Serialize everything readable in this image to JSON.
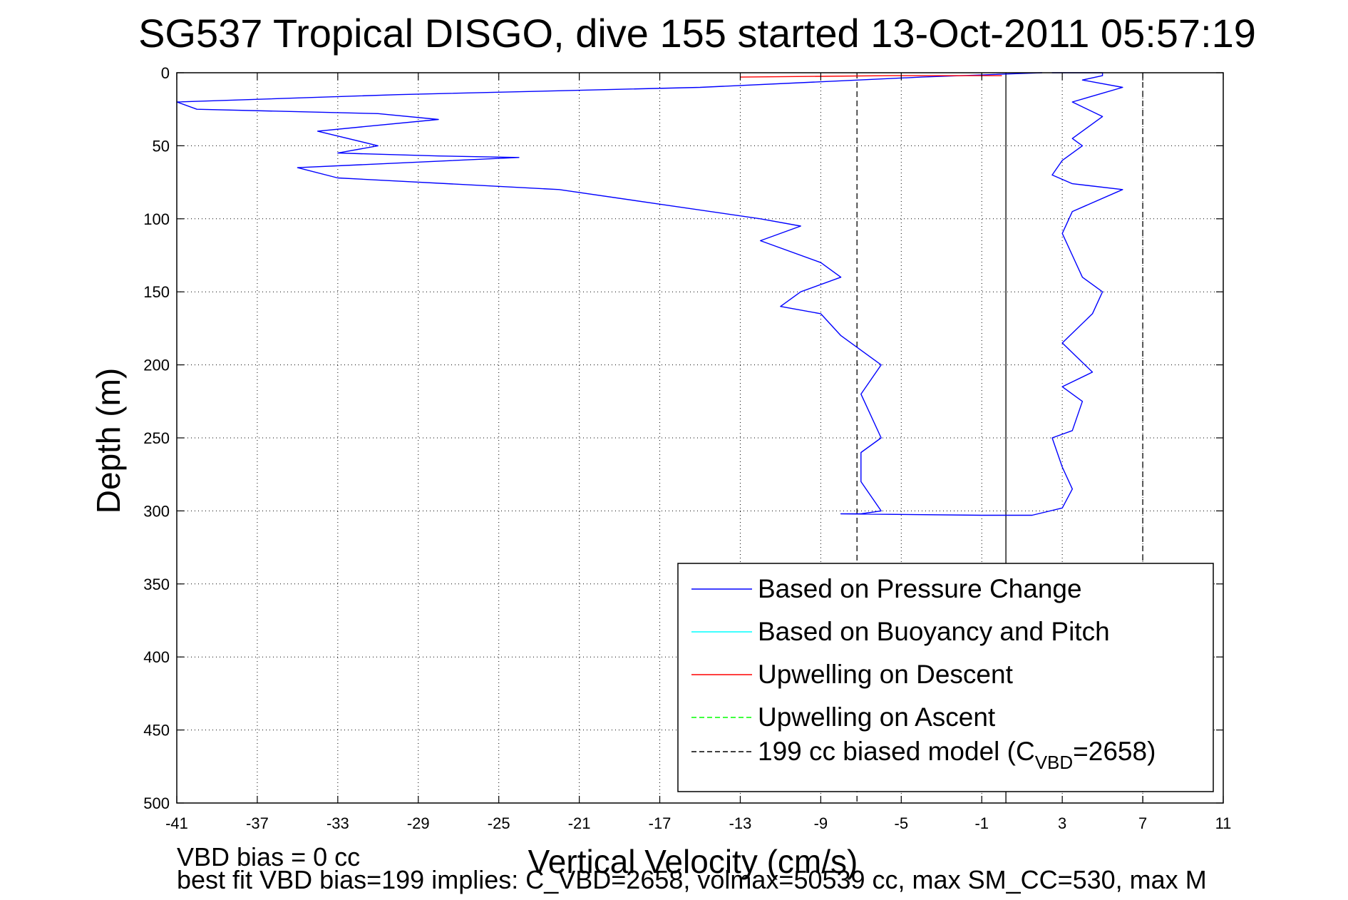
{
  "chart_data": {
    "type": "line",
    "title": "SG537 Tropical DISGO, dive 155 started 13-Oct-2011 05:57:19",
    "xlabel": "Vertical Velocity (cm/s)",
    "ylabel": "Depth (m)",
    "xlim": [
      -41,
      11
    ],
    "ylim": [
      0,
      500
    ],
    "y_reversed": true,
    "grid": true,
    "xticks": [
      "-41",
      "-37",
      "-33",
      "-29",
      "-25",
      "-21",
      "-17",
      "-13",
      "-9",
      "-5",
      "-1",
      "3",
      "7",
      "11"
    ],
    "yticks": [
      "0",
      "50",
      "100",
      "150",
      "200",
      "250",
      "300",
      "350",
      "400",
      "450",
      "500"
    ],
    "legend_position": "lower-right",
    "legend": [
      {
        "label": "Based on Pressure Change",
        "color": "#0000ff",
        "style": "solid"
      },
      {
        "label": "Based on Buoyancy and Pitch",
        "color": "#00ffff",
        "style": "solid"
      },
      {
        "label": "Upwelling on Descent",
        "color": "#ff0000",
        "style": "solid"
      },
      {
        "label": "Upwelling on Ascent",
        "color": "#00ff00",
        "style": "dashed"
      },
      {
        "label_main": "199 cc biased model (C",
        "label_sub": "VBD",
        "label_end": "=2658)",
        "color": "#000000",
        "style": "dashed"
      }
    ],
    "series": [
      {
        "color": "#0000ff",
        "x": [
          2,
          -4,
          -15,
          -30,
          -41,
          -40,
          -31,
          -28,
          -34,
          -31,
          -33,
          -28,
          -24,
          -35,
          -33,
          -22,
          -17,
          -12,
          -10,
          -12,
          -9,
          -8,
          -10,
          -11,
          -9,
          -8,
          -6,
          -7,
          -6,
          -7,
          -7,
          -6,
          -7,
          -8,
          -7,
          -8,
          -1,
          1.5,
          3,
          3.5,
          3,
          2.5,
          3.5,
          4,
          3,
          4.5,
          3,
          4.5,
          5,
          4,
          3.5,
          3,
          3.5,
          6,
          3.5,
          2.5,
          3,
          4,
          3.5,
          5,
          3.5,
          6,
          4,
          5,
          5,
          3.5,
          2.5,
          3,
          4
        ],
        "y": [
          0,
          3,
          10,
          15,
          20,
          25,
          28,
          32,
          40,
          50,
          55,
          57,
          58,
          65,
          72,
          80,
          90,
          100,
          105,
          115,
          130,
          140,
          150,
          160,
          165,
          180,
          200,
          220,
          250,
          260,
          280,
          300,
          302,
          302,
          302,
          302,
          303,
          303,
          298,
          285,
          270,
          250,
          245,
          225,
          215,
          205,
          185,
          165,
          150,
          140,
          125,
          110,
          95,
          80,
          76,
          70,
          60,
          50,
          45,
          30,
          20,
          10,
          5,
          2,
          0,
          0,
          0,
          0,
          0
        ]
      },
      {
        "color": "#ff0000",
        "x": [
          -13,
          -5.5,
          0
        ],
        "y": [
          3,
          2,
          2
        ]
      }
    ],
    "reference_lines": [
      {
        "x": -7.2,
        "style": "dashed",
        "color": "#000000"
      },
      {
        "x": 0.2,
        "style": "solid",
        "color": "#000000"
      },
      {
        "x": 7,
        "style": "dashed",
        "color": "#000000"
      }
    ]
  },
  "footer": {
    "line1": "VBD bias = 0 cc",
    "line2": "best fit VBD bias=199 implies: C_VBD=2658, volmax=50539 cc, max SM_CC=530, max M"
  }
}
